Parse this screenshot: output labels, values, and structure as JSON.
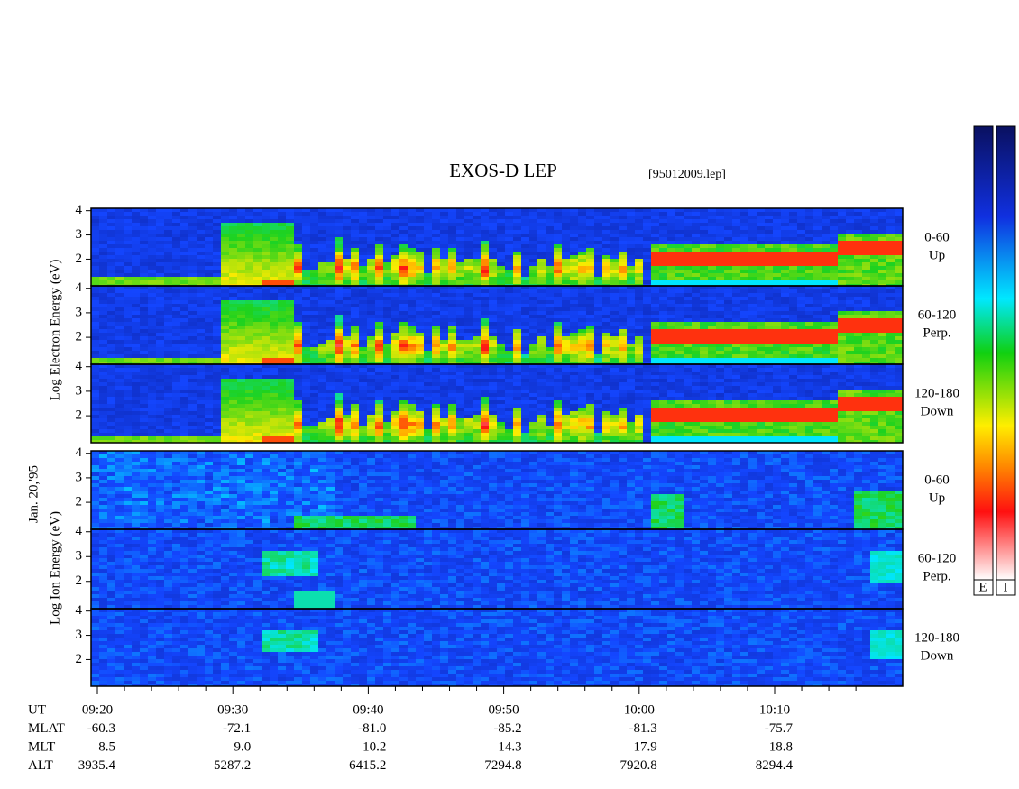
{
  "header": {
    "title": "EXOS-D LEP",
    "file": "[95012009.lep]",
    "date": "Jan. 20,'95"
  },
  "electron_axis_label": "Log Electron Energy (eV)",
  "ion_axis_label": "Log Ion Energy (eV)",
  "panels": [
    {
      "species": "electron",
      "angle": "0-60",
      "direction": "Up"
    },
    {
      "species": "electron",
      "angle": "60-120",
      "direction": "Perp."
    },
    {
      "species": "electron",
      "angle": "120-180",
      "direction": "Down"
    },
    {
      "species": "ion",
      "angle": "0-60",
      "direction": "Up"
    },
    {
      "species": "ion",
      "angle": "60-120",
      "direction": "Perp."
    },
    {
      "species": "ion",
      "angle": "120-180",
      "direction": "Down"
    }
  ],
  "ylim": [
    0.9,
    4.1
  ],
  "yticks": [
    2,
    3,
    4
  ],
  "ephemeris": {
    "labels": [
      "UT",
      "MLAT",
      "MLT",
      "ALT"
    ],
    "columns": [
      [
        "09:20",
        "-60.3",
        "8.5",
        "3935.4"
      ],
      [
        "09:30",
        "-72.1",
        "9.0",
        "5287.2"
      ],
      [
        "09:40",
        "-81.0",
        "10.2",
        "6415.2"
      ],
      [
        "09:50",
        "-85.2",
        "14.3",
        "7294.8"
      ],
      [
        "10:00",
        "-81.3",
        "17.9",
        "7920.8"
      ],
      [
        "10:10",
        "-75.7",
        "18.8",
        "8294.4"
      ]
    ]
  },
  "colorbars": [
    "E",
    "I"
  ]
}
